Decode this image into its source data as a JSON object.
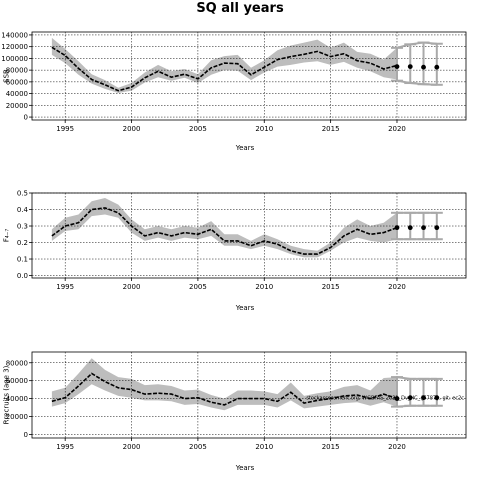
{
  "figure": {
    "title": "SQ all years",
    "colors": {
      "band": "#bdbdbd",
      "line": "#000000",
      "forecast_bar": "#a9a9a9",
      "grid": "#000000"
    }
  },
  "chart_data": [
    {
      "type": "line",
      "ylabel": "SSB",
      "xlabel": "Years",
      "xlim": [
        1992.5,
        2025.2
      ],
      "ylim": [
        -5000,
        145000
      ],
      "xticks": [
        1995,
        2000,
        2005,
        2010,
        2015,
        2020
      ],
      "yticks": [
        0,
        20000,
        40000,
        60000,
        80000,
        100000,
        120000,
        140000
      ],
      "grid": true,
      "x": [
        1994,
        1995,
        1996,
        1997,
        1998,
        1999,
        2000,
        2001,
        2002,
        2003,
        2004,
        2005,
        2006,
        2007,
        2008,
        2009,
        2010,
        2011,
        2012,
        2013,
        2014,
        2015,
        2016,
        2017,
        2018,
        2019,
        2020
      ],
      "estimate": [
        119000,
        105000,
        83000,
        64000,
        55000,
        45000,
        51000,
        67000,
        78000,
        68000,
        73000,
        65000,
        84000,
        92000,
        91000,
        72000,
        85000,
        98000,
        103000,
        107000,
        112000,
        103000,
        108000,
        96000,
        92000,
        82000,
        88000
      ],
      "lower": [
        106000,
        92000,
        72000,
        57000,
        48000,
        41000,
        45000,
        59000,
        68000,
        62000,
        67000,
        58000,
        72000,
        80000,
        79000,
        63000,
        76000,
        86000,
        89000,
        93000,
        95000,
        89000,
        94000,
        84000,
        78000,
        68000,
        64000
      ],
      "upper": [
        135000,
        116000,
        95000,
        73000,
        63000,
        50000,
        58000,
        76000,
        89000,
        78000,
        82000,
        73000,
        97000,
        104000,
        106000,
        84000,
        97000,
        114000,
        122000,
        127000,
        132000,
        118000,
        127000,
        111000,
        108000,
        98000,
        118000
      ],
      "forecast": {
        "x": [
          2020,
          2021,
          2022,
          2023
        ],
        "estimate": [
          86000,
          86000,
          85000,
          85000
        ],
        "lower": [
          62000,
          58000,
          56000,
          55000
        ],
        "upper": [
          118000,
          124000,
          127000,
          125000
        ]
      }
    },
    {
      "type": "line",
      "ylabel": "F₄₋₇",
      "xlabel": "Years",
      "xlim": [
        1992.5,
        2025.2
      ],
      "ylim": [
        -0.015,
        0.5
      ],
      "xticks": [
        1995,
        2000,
        2005,
        2010,
        2015,
        2020
      ],
      "yticks": [
        0.0,
        0.1,
        0.2,
        0.3,
        0.4,
        0.5
      ],
      "ytick_labels": [
        "0.0",
        "0.1",
        "0.2",
        "0.3",
        "0.4",
        "0.5"
      ],
      "grid": true,
      "x": [
        1994,
        1995,
        1996,
        1997,
        1998,
        1999,
        2000,
        2001,
        2002,
        2003,
        2004,
        2005,
        2006,
        2007,
        2008,
        2009,
        2010,
        2011,
        2012,
        2013,
        2014,
        2015,
        2016,
        2017,
        2018,
        2019,
        2020
      ],
      "estimate": [
        0.24,
        0.3,
        0.32,
        0.4,
        0.41,
        0.38,
        0.3,
        0.24,
        0.26,
        0.24,
        0.26,
        0.25,
        0.28,
        0.21,
        0.21,
        0.18,
        0.21,
        0.19,
        0.15,
        0.13,
        0.13,
        0.17,
        0.24,
        0.28,
        0.25,
        0.26,
        0.29
      ],
      "lower": [
        0.21,
        0.27,
        0.28,
        0.36,
        0.37,
        0.35,
        0.26,
        0.21,
        0.23,
        0.21,
        0.23,
        0.22,
        0.24,
        0.18,
        0.18,
        0.16,
        0.18,
        0.16,
        0.13,
        0.11,
        0.11,
        0.15,
        0.2,
        0.23,
        0.21,
        0.2,
        0.22
      ],
      "upper": [
        0.28,
        0.35,
        0.37,
        0.45,
        0.47,
        0.43,
        0.34,
        0.28,
        0.3,
        0.28,
        0.3,
        0.29,
        0.33,
        0.25,
        0.25,
        0.21,
        0.25,
        0.22,
        0.18,
        0.16,
        0.15,
        0.2,
        0.29,
        0.34,
        0.3,
        0.32,
        0.38
      ],
      "forecast": {
        "x": [
          2020,
          2021,
          2022,
          2023
        ],
        "estimate": [
          0.29,
          0.29,
          0.29,
          0.29
        ],
        "lower": [
          0.22,
          0.22,
          0.22,
          0.22
        ],
        "upper": [
          0.38,
          0.38,
          0.38,
          0.38
        ]
      }
    },
    {
      "type": "line",
      "ylabel": "Rrecruits (age 3)",
      "xlabel": "Years",
      "xlim": [
        1992.5,
        2025.2
      ],
      "ylim": [
        -4000,
        92000
      ],
      "xticks": [
        1995,
        2000,
        2005,
        2010,
        2015,
        2020
      ],
      "yticks": [
        0,
        20000,
        40000,
        60000,
        80000
      ],
      "grid": true,
      "annotation": "stockassessment.org, WGBFAS_2021_Dv_HC_{5787}, git: ec2c",
      "x": [
        1994,
        1995,
        1996,
        1997,
        1998,
        1999,
        2000,
        2001,
        2002,
        2003,
        2004,
        2005,
        2006,
        2007,
        2008,
        2009,
        2010,
        2011,
        2012,
        2013,
        2014,
        2015,
        2016,
        2017,
        2018,
        2019,
        2020
      ],
      "estimate": [
        37000,
        41000,
        54000,
        68000,
        59000,
        52000,
        50000,
        45000,
        46000,
        45000,
        40000,
        41000,
        36000,
        33000,
        40000,
        40000,
        40000,
        37000,
        47000,
        35000,
        38000,
        40000,
        43000,
        44000,
        40000,
        45000,
        40000
      ],
      "lower": [
        31000,
        35000,
        45000,
        56000,
        49000,
        43000,
        41000,
        38000,
        38000,
        37000,
        33000,
        34000,
        30000,
        27000,
        33000,
        33000,
        33000,
        30000,
        38000,
        29000,
        31000,
        33000,
        35000,
        36000,
        32000,
        36000,
        31000
      ],
      "upper": [
        48000,
        52000,
        68000,
        85000,
        72000,
        64000,
        62000,
        55000,
        56000,
        54000,
        49000,
        50000,
        44000,
        40000,
        49000,
        49000,
        48000,
        45000,
        58000,
        43000,
        46000,
        48000,
        53000,
        55000,
        49000,
        63000,
        64000
      ],
      "forecast": {
        "x": [
          2020,
          2021,
          2022,
          2023
        ],
        "estimate": [
          40000,
          41000,
          41000,
          41000
        ],
        "lower": [
          31000,
          32000,
          32000,
          32000
        ],
        "upper": [
          64000,
          62000,
          62000,
          62000
        ]
      }
    }
  ]
}
